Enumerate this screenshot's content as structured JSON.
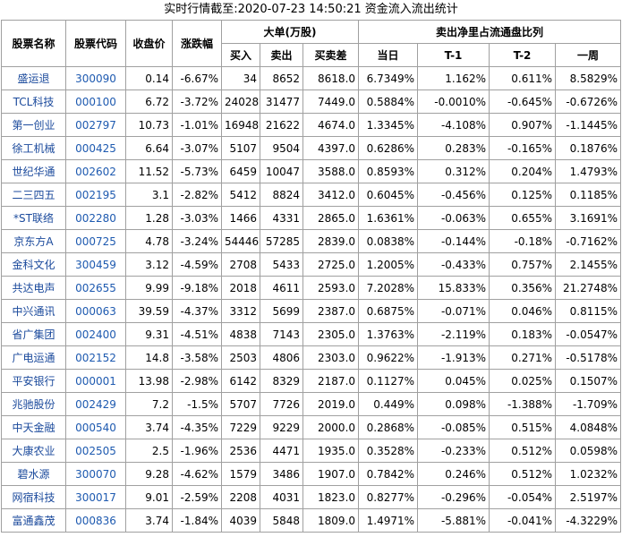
{
  "title": "实时行情截至:2020-07-23 14:50:21 资金流入流出统计",
  "table": {
    "header_top": [
      "股票名称",
      "股票代码",
      "收盘价",
      "涨跌幅",
      "大单(万股)",
      "卖出净里占流通盘比列"
    ],
    "header_sub": [
      "买入",
      "卖出",
      "买卖差",
      "当日",
      "T-1",
      "T-2",
      "一周"
    ],
    "rows": [
      [
        "盛运退",
        "300090",
        "0.14",
        "-6.67%",
        "34",
        "8652",
        "8618.0",
        "6.7349%",
        "1.162%",
        "0.611%",
        "8.5829%"
      ],
      [
        "TCL科技",
        "000100",
        "6.72",
        "-3.72%",
        "24028",
        "31477",
        "7449.0",
        "0.5884%",
        "-0.0010%",
        "-0.645%",
        "-0.6726%"
      ],
      [
        "第一创业",
        "002797",
        "10.73",
        "-1.01%",
        "16948",
        "21622",
        "4674.0",
        "1.3345%",
        "-4.108%",
        "0.907%",
        "-1.1445%"
      ],
      [
        "徐工机械",
        "000425",
        "6.64",
        "-3.07%",
        "5107",
        "9504",
        "4397.0",
        "0.6286%",
        "0.283%",
        "-0.165%",
        "0.1876%"
      ],
      [
        "世纪华通",
        "002602",
        "11.52",
        "-5.73%",
        "6459",
        "10047",
        "3588.0",
        "0.8593%",
        "0.312%",
        "0.204%",
        "1.4793%"
      ],
      [
        "二三四五",
        "002195",
        "3.1",
        "-2.82%",
        "5412",
        "8824",
        "3412.0",
        "0.6045%",
        "-0.456%",
        "0.125%",
        "0.1185%"
      ],
      [
        "*ST联络",
        "002280",
        "1.28",
        "-3.03%",
        "1466",
        "4331",
        "2865.0",
        "1.6361%",
        "-0.063%",
        "0.655%",
        "3.1691%"
      ],
      [
        "京东方A",
        "000725",
        "4.78",
        "-3.24%",
        "54446",
        "57285",
        "2839.0",
        "0.0838%",
        "-0.144%",
        "-0.18%",
        "-0.7162%"
      ],
      [
        "金科文化",
        "300459",
        "3.12",
        "-4.59%",
        "2708",
        "5433",
        "2725.0",
        "1.2005%",
        "-0.433%",
        "0.757%",
        "2.1455%"
      ],
      [
        "共达电声",
        "002655",
        "9.99",
        "-9.18%",
        "2018",
        "4611",
        "2593.0",
        "7.2028%",
        "15.833%",
        "0.356%",
        "21.2748%"
      ],
      [
        "中兴通讯",
        "000063",
        "39.59",
        "-4.37%",
        "3312",
        "5699",
        "2387.0",
        "0.6875%",
        "-0.071%",
        "0.046%",
        "0.8115%"
      ],
      [
        "省广集团",
        "002400",
        "9.31",
        "-4.51%",
        "4838",
        "7143",
        "2305.0",
        "1.3763%",
        "-2.119%",
        "0.183%",
        "-0.0547%"
      ],
      [
        "广电运通",
        "002152",
        "14.8",
        "-3.58%",
        "2503",
        "4806",
        "2303.0",
        "0.9622%",
        "-1.913%",
        "0.271%",
        "-0.5178%"
      ],
      [
        "平安银行",
        "000001",
        "13.98",
        "-2.98%",
        "6142",
        "8329",
        "2187.0",
        "0.1127%",
        "0.045%",
        "0.025%",
        "0.1507%"
      ],
      [
        "兆驰股份",
        "002429",
        "7.2",
        "-1.5%",
        "5707",
        "7726",
        "2019.0",
        "0.449%",
        "0.098%",
        "-1.388%",
        "-1.709%"
      ],
      [
        "中天金融",
        "000540",
        "3.74",
        "-4.35%",
        "7229",
        "9229",
        "2000.0",
        "0.2868%",
        "-0.085%",
        "0.515%",
        "4.0848%"
      ],
      [
        "大康农业",
        "002505",
        "2.5",
        "-1.96%",
        "2536",
        "4471",
        "1935.0",
        "0.3528%",
        "-0.233%",
        "0.512%",
        "0.0598%"
      ],
      [
        "碧水源",
        "300070",
        "9.28",
        "-4.62%",
        "1579",
        "3486",
        "1907.0",
        "0.7842%",
        "0.246%",
        "0.512%",
        "1.0232%"
      ],
      [
        "网宿科技",
        "300017",
        "9.01",
        "-2.59%",
        "2208",
        "4031",
        "1823.0",
        "0.8277%",
        "-0.296%",
        "-0.054%",
        "2.5197%"
      ],
      [
        "富通鑫茂",
        "000836",
        "3.74",
        "-1.84%",
        "4039",
        "5848",
        "1809.0",
        "1.4971%",
        "-5.881%",
        "-0.041%",
        "-4.3229%"
      ]
    ]
  }
}
